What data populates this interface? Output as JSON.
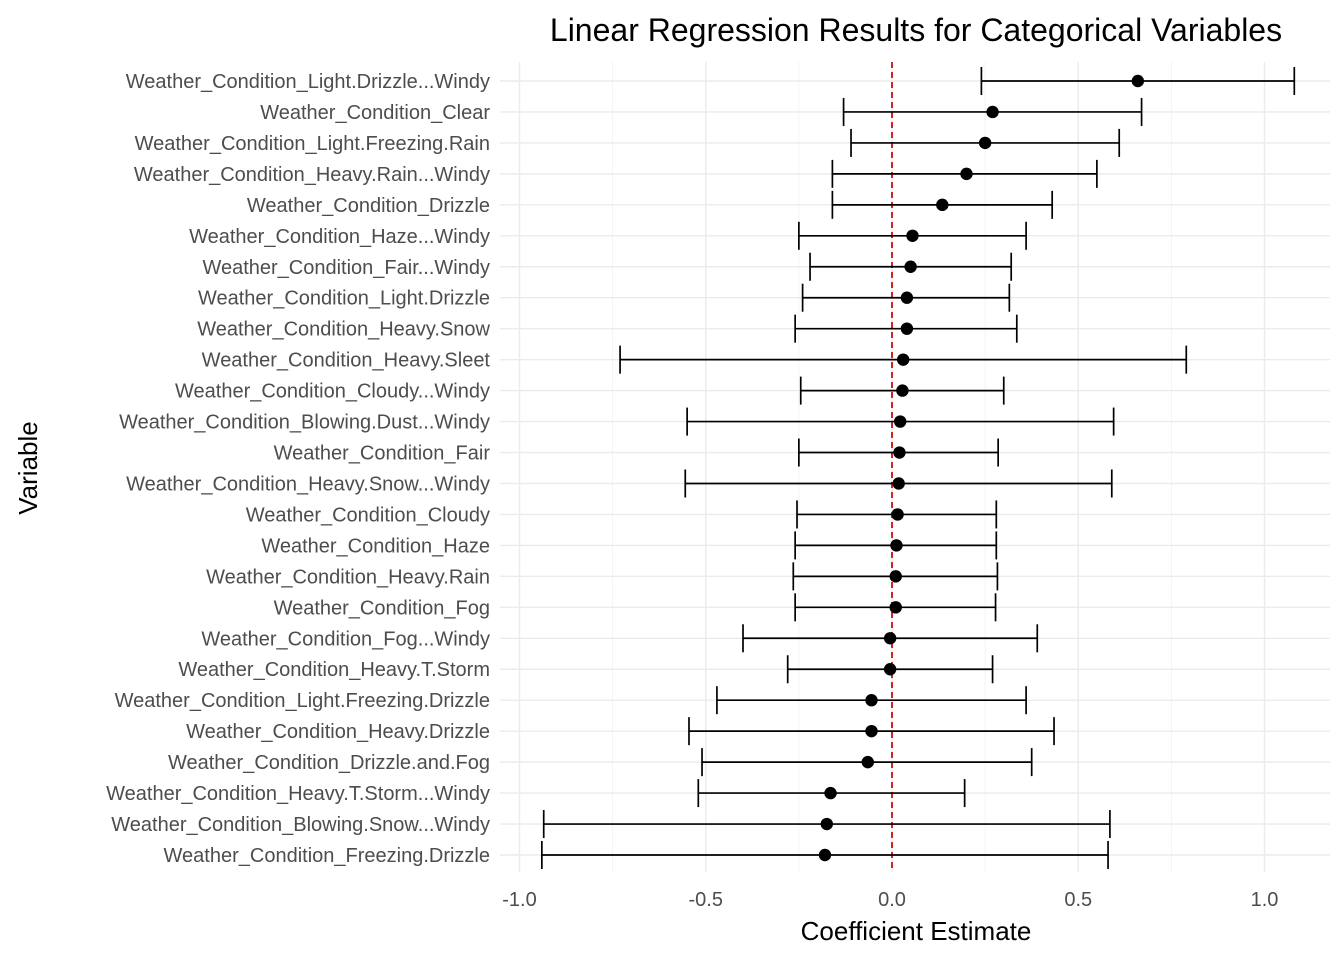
{
  "chart_data": {
    "type": "scatter",
    "subtype": "coefficient-errorbar",
    "title": "Linear Regression Results for Categorical Variables",
    "xlabel": "Coefficient Estimate",
    "ylabel": "Variable",
    "xlim": [
      -1.05,
      1.18
    ],
    "xticks": [
      -1.0,
      -0.5,
      0.0,
      0.5,
      1.0
    ],
    "xtick_labels": [
      "-1.0",
      "-0.5",
      "0.0",
      "0.5",
      "1.0"
    ],
    "reference_line": {
      "x": 0,
      "style": "dashed",
      "color": "#cc0000"
    },
    "grid": true,
    "legend": "none",
    "series": [
      {
        "points": [
          {
            "label": "Weather_Condition_Light.Drizzle...Windy",
            "estimate": 0.66,
            "lower": 0.24,
            "upper": 1.08
          },
          {
            "label": "Weather_Condition_Clear",
            "estimate": 0.27,
            "lower": -0.13,
            "upper": 0.67
          },
          {
            "label": "Weather_Condition_Light.Freezing.Rain",
            "estimate": 0.25,
            "lower": -0.11,
            "upper": 0.61
          },
          {
            "label": "Weather_Condition_Heavy.Rain...Windy",
            "estimate": 0.2,
            "lower": -0.16,
            "upper": 0.55
          },
          {
            "label": "Weather_Condition_Drizzle",
            "estimate": 0.135,
            "lower": -0.16,
            "upper": 0.43
          },
          {
            "label": "Weather_Condition_Haze...Windy",
            "estimate": 0.055,
            "lower": -0.25,
            "upper": 0.36
          },
          {
            "label": "Weather_Condition_Fair...Windy",
            "estimate": 0.05,
            "lower": -0.22,
            "upper": 0.32
          },
          {
            "label": "Weather_Condition_Light.Drizzle",
            "estimate": 0.04,
            "lower": -0.24,
            "upper": 0.315
          },
          {
            "label": "Weather_Condition_Heavy.Snow",
            "estimate": 0.04,
            "lower": -0.26,
            "upper": 0.335
          },
          {
            "label": "Weather_Condition_Heavy.Sleet",
            "estimate": 0.03,
            "lower": -0.73,
            "upper": 0.79
          },
          {
            "label": "Weather_Condition_Cloudy...Windy",
            "estimate": 0.028,
            "lower": -0.245,
            "upper": 0.3
          },
          {
            "label": "Weather_Condition_Blowing.Dust...Windy",
            "estimate": 0.022,
            "lower": -0.55,
            "upper": 0.595
          },
          {
            "label": "Weather_Condition_Fair",
            "estimate": 0.02,
            "lower": -0.25,
            "upper": 0.285
          },
          {
            "label": "Weather_Condition_Heavy.Snow...Windy",
            "estimate": 0.018,
            "lower": -0.555,
            "upper": 0.59
          },
          {
            "label": "Weather_Condition_Cloudy",
            "estimate": 0.015,
            "lower": -0.255,
            "upper": 0.28
          },
          {
            "label": "Weather_Condition_Haze",
            "estimate": 0.012,
            "lower": -0.26,
            "upper": 0.28
          },
          {
            "label": "Weather_Condition_Heavy.Rain",
            "estimate": 0.01,
            "lower": -0.265,
            "upper": 0.283
          },
          {
            "label": "Weather_Condition_Fog",
            "estimate": 0.01,
            "lower": -0.26,
            "upper": 0.278
          },
          {
            "label": "Weather_Condition_Fog...Windy",
            "estimate": -0.005,
            "lower": -0.4,
            "upper": 0.39
          },
          {
            "label": "Weather_Condition_Heavy.T.Storm",
            "estimate": -0.005,
            "lower": -0.28,
            "upper": 0.27
          },
          {
            "label": "Weather_Condition_Light.Freezing.Drizzle",
            "estimate": -0.055,
            "lower": -0.47,
            "upper": 0.36
          },
          {
            "label": "Weather_Condition_Heavy.Drizzle",
            "estimate": -0.055,
            "lower": -0.545,
            "upper": 0.435
          },
          {
            "label": "Weather_Condition_Drizzle.and.Fog",
            "estimate": -0.065,
            "lower": -0.51,
            "upper": 0.375
          },
          {
            "label": "Weather_Condition_Heavy.T.Storm...Windy",
            "estimate": -0.165,
            "lower": -0.52,
            "upper": 0.195
          },
          {
            "label": "Weather_Condition_Blowing.Snow...Windy",
            "estimate": -0.175,
            "lower": -0.935,
            "upper": 0.585
          },
          {
            "label": "Weather_Condition_Freezing.Drizzle",
            "estimate": -0.18,
            "lower": -0.94,
            "upper": 0.58
          }
        ]
      }
    ]
  }
}
